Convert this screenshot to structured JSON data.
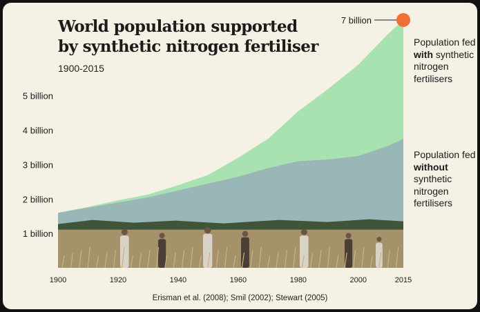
{
  "title": "World population supported\nby synthetic nitrogen fertiliser",
  "subtitle": "1900-2015",
  "source": "Erisman et al. (2008); Smil (2002); Stewart (2005)",
  "colors": {
    "background": "#f5f1e4",
    "with_fertiliser": "#a8e2b0",
    "without_fertiliser": "#9ab7b8",
    "marker": "#ef7033"
  },
  "annotations": {
    "with": {
      "pre": "Population fed",
      "bold": "with",
      "post": "synthetic nitrogen fertilisers"
    },
    "without": {
      "pre": "Population fed",
      "bold": "without",
      "post": "synthetic nitrogen fertilisers"
    },
    "peak_label": "7 billion"
  },
  "photo": {
    "description_icon": "wheat-harvest-photo"
  },
  "chart_data": {
    "type": "area",
    "title": "World population supported by synthetic nitrogen fertiliser",
    "subtitle": "1900-2015",
    "xlabel": "",
    "ylabel": "",
    "x_ticks": [
      "1900",
      "1920",
      "1940",
      "1960",
      "1980",
      "2000",
      "2015"
    ],
    "y_ticks": [
      "1 billion",
      "2 billion",
      "3 billion",
      "4 billion",
      "5 billion"
    ],
    "y_tick_values": [
      1,
      2,
      3,
      4,
      5
    ],
    "xlim": [
      1900,
      2015
    ],
    "ylim": [
      0,
      7.3
    ],
    "stacked": true,
    "series": [
      {
        "name": "Population fed without synthetic nitrogen fertilisers",
        "x": [
          1900,
          1910,
          1920,
          1930,
          1940,
          1950,
          1960,
          1970,
          1980,
          1990,
          2000,
          2010,
          2015
        ],
        "values": [
          1.6,
          1.75,
          1.9,
          2.05,
          2.25,
          2.45,
          2.65,
          2.9,
          3.1,
          3.15,
          3.25,
          3.55,
          3.75
        ]
      },
      {
        "name": "Population fed with synthetic nitrogen fertilisers",
        "x": [
          1900,
          1910,
          1920,
          1930,
          1940,
          1950,
          1960,
          1970,
          1980,
          1990,
          2000,
          2010,
          2015
        ],
        "values": [
          0,
          0.02,
          0.06,
          0.08,
          0.15,
          0.25,
          0.55,
          0.85,
          1.45,
          2.05,
          2.65,
          3.25,
          3.45
        ]
      }
    ],
    "annotation": {
      "x": 2015,
      "y": 7.2,
      "label": "7 billion"
    },
    "grid": false,
    "legend": "right (direct labels)"
  }
}
